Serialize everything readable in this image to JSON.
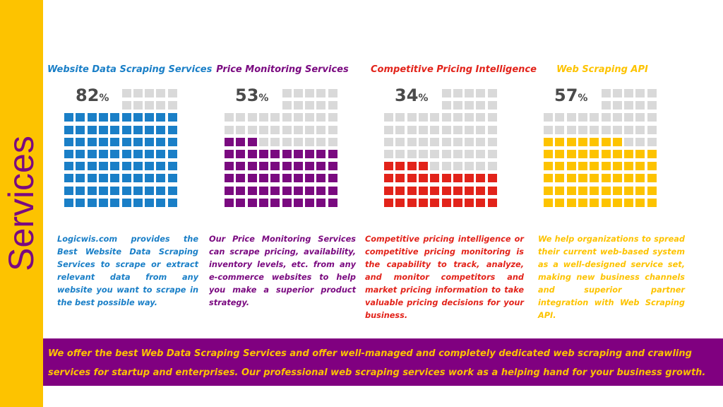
{
  "sidebar": {
    "title": "Services",
    "bg_color": "#fdc300",
    "text_color": "#7a0a80"
  },
  "empty_cell_color": "#d9d9d9",
  "services": [
    {
      "title": "Website Data Scraping Services",
      "percent": "82",
      "percent_symbol": "%",
      "value": 82,
      "color": "#1a7fc7",
      "description": "Logicwis.com provides the Best Website Data Scraping Services to scrape or extract relevant data from any website you want to scrape in the best possible way."
    },
    {
      "title": "Price Monitoring Services",
      "percent": "53",
      "percent_symbol": "%",
      "value": 53,
      "color": "#7a0a80",
      "description": "Our Price Monitoring Services can scrape pricing, availability, inventory levels, etc. from any e-commerce websites to help you make a superior product strategy."
    },
    {
      "title": "Competitive Pricing Intelligence",
      "percent": "34",
      "percent_symbol": "%",
      "value": 34,
      "color": "#e2231a",
      "description": "Competitive pricing intelligence or competitive pricing monitoring is the capability to track, analyze, and monitor competitors and market pricing information to take valuable pricing decisions for your business."
    },
    {
      "title": "Web Scraping API",
      "percent": "57",
      "percent_symbol": "%",
      "value": 57,
      "color": "#fdc300",
      "description": "We help organizations to spread their current web-based system as a well-designed service set, making new business channels and superior partner integration with Web Scraping API."
    }
  ],
  "footer": {
    "bg_color": "#800080",
    "text_color": "#fdc300",
    "text": "We offer the best Web Data Scraping Services and offer well-managed and completely dedicated web scraping and crawling services for startup and enterprises. Our professional web scraping services work as a helping hand for your business growth."
  }
}
